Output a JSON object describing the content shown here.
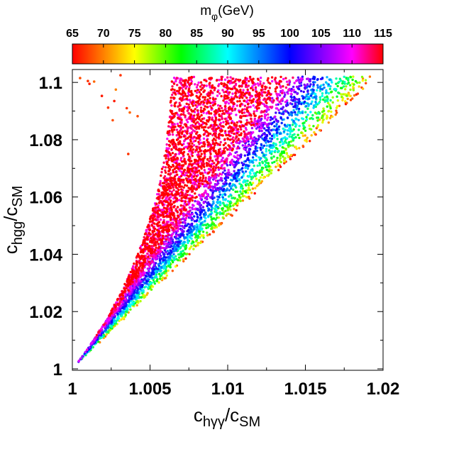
{
  "chart_data": {
    "type": "scatter",
    "title": "",
    "xlabel": {
      "main": "c",
      "sub": "hγγ",
      "slash": "/c",
      "sub2": "SM"
    },
    "ylabel": {
      "main": "c",
      "sub": "hgg",
      "slash": "/c",
      "sub2": "SM"
    },
    "xlim": [
      1.0,
      1.02
    ],
    "ylim": [
      0.9995,
      1.1045
    ],
    "x_ticks": [
      1.0,
      1.005,
      1.01,
      1.015,
      1.02
    ],
    "x_tick_labels": [
      "1",
      "1.005",
      "1.01",
      "1.015",
      "1.02"
    ],
    "y_ticks": [
      1.0,
      1.02,
      1.04,
      1.06,
      1.08,
      1.1
    ],
    "y_tick_labels": [
      "1",
      "1.02",
      "1.04",
      "1.06",
      "1.08",
      "1.1"
    ],
    "colorbar": {
      "title": {
        "main": "m",
        "sub": "φ",
        "unit": "(GeV)"
      },
      "range": [
        65,
        115
      ],
      "ticks": [
        65,
        70,
        75,
        80,
        85,
        90,
        95,
        100,
        105,
        110,
        115
      ],
      "tick_labels": [
        "65",
        "70",
        "75",
        "80",
        "85",
        "90",
        "95",
        "100",
        "105",
        "110",
        "115"
      ],
      "colormap": "rainbow: 65=red → orange → yellow → green → cyan → blue → magenta → 115=red"
    },
    "point_distribution": {
      "description": "Dense wedge of points starting at (1.0002, 1.002); upper edge rises steeply, lower edge follows y ≈ 1 + 5.2·(x−1); points saturate near y = 1.102 up to x ≈ 1.0195. Higher mφ lies near the upper edge, lower mφ near the lower edge.",
      "origin": [
        1.0002,
        1.002
      ],
      "lower_edge_slope": 5.2,
      "ceiling_y": 1.102,
      "ceiling_x_max": 1.0195,
      "n_points": 5200,
      "isolated_points": [
        {
          "x": 1.0005,
          "y": 1.1015,
          "m": 68
        },
        {
          "x": 1.001,
          "y": 1.1005,
          "m": 67
        },
        {
          "x": 1.0011,
          "y": 1.0995,
          "m": 66
        },
        {
          "x": 1.0014,
          "y": 1.1003,
          "m": 69
        },
        {
          "x": 1.0023,
          "y": 1.0912,
          "m": 67
        },
        {
          "x": 1.0026,
          "y": 1.0868,
          "m": 68
        },
        {
          "x": 1.0027,
          "y": 1.0935,
          "m": 66
        },
        {
          "x": 1.0035,
          "y": 1.091,
          "m": 67
        },
        {
          "x": 1.0037,
          "y": 1.0895,
          "m": 69
        },
        {
          "x": 1.0028,
          "y": 1.0975,
          "m": 70
        },
        {
          "x": 1.0036,
          "y": 1.075,
          "m": 67
        },
        {
          "x": 1.0019,
          "y": 1.0953,
          "m": 66
        },
        {
          "x": 1.0042,
          "y": 1.0882,
          "m": 68
        },
        {
          "x": 1.0031,
          "y": 1.1025,
          "m": 67
        }
      ]
    }
  }
}
